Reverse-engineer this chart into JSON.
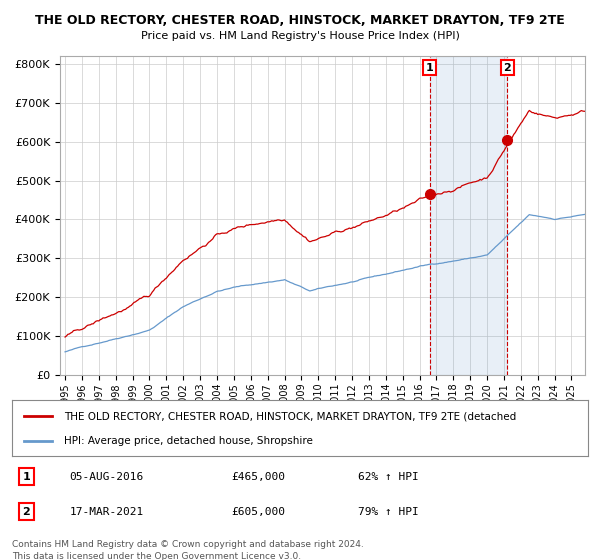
{
  "title_line1": "THE OLD RECTORY, CHESTER ROAD, HINSTOCK, MARKET DRAYTON, TF9 2TE",
  "title_line2": "Price paid vs. HM Land Registry's House Price Index (HPI)",
  "legend_label1": "THE OLD RECTORY, CHESTER ROAD, HINSTOCK, MARKET DRAYTON, TF9 2TE (detached",
  "legend_label2": "HPI: Average price, detached house, Shropshire",
  "footer_line1": "Contains HM Land Registry data © Crown copyright and database right 2024.",
  "footer_line2": "This data is licensed under the Open Government Licence v3.0.",
  "annotation1_date": "05-AUG-2016",
  "annotation1_price": "£465,000",
  "annotation1_hpi": "62% ↑ HPI",
  "annotation2_date": "17-MAR-2021",
  "annotation2_price": "£605,000",
  "annotation2_hpi": "79% ↑ HPI",
  "red_color": "#cc0000",
  "blue_color": "#6699cc",
  "shade_color": "#ddeeff",
  "point_color": "#cc0000",
  "ylim_max": 820000,
  "ylim_min": 0,
  "background_color": "#ffffff",
  "grid_color": "#cccccc",
  "sale1_year": 2016.6,
  "sale1_price": 465000,
  "sale2_year": 2021.2,
  "sale2_price": 605000
}
